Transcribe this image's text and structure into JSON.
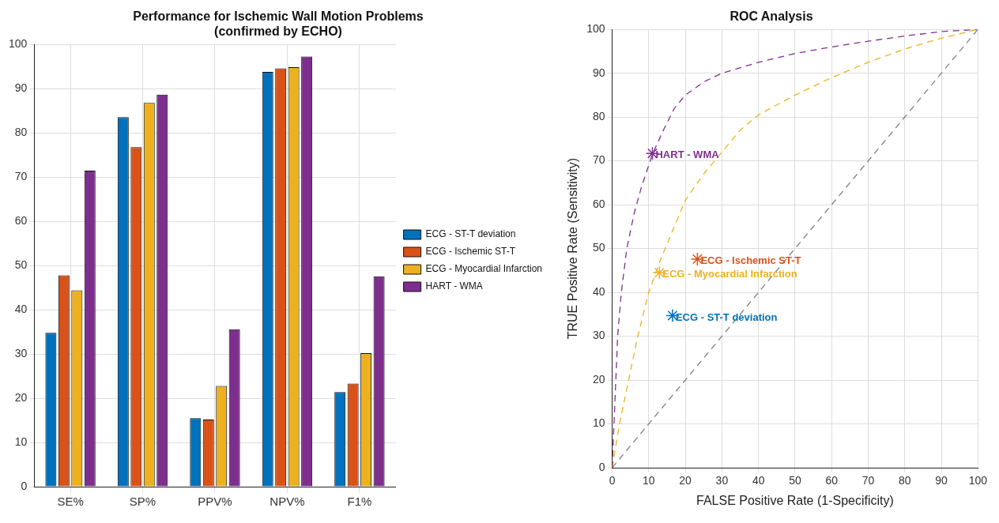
{
  "chart_data": [
    {
      "type": "bar",
      "title": "Performance for Ischemic Wall Motion Problems\n(confirmed by ECHO)",
      "categories": [
        "SE%",
        "SP%",
        "PPV%",
        "NPV%",
        "F1%"
      ],
      "ylim": [
        0,
        100
      ],
      "yticks": [
        0,
        10,
        20,
        30,
        40,
        50,
        60,
        70,
        80,
        90,
        100
      ],
      "grid": true,
      "legend": "right",
      "series": [
        {
          "name": "ECG - ST-T deviation",
          "color": "#0072bd",
          "values": [
            34.8,
            83.6,
            15.5,
            93.8,
            21.4
          ]
        },
        {
          "name": "ECG - Ischemic ST-T",
          "color": "#d95319",
          "values": [
            47.8,
            76.8,
            15.2,
            94.6,
            23.3
          ]
        },
        {
          "name": "ECG - Myocardial Infarction",
          "color": "#edb120",
          "values": [
            44.4,
            86.8,
            22.8,
            94.9,
            30.2
          ]
        },
        {
          "name": "HART - WMA",
          "color": "#7e2f8e",
          "values": [
            71.5,
            88.7,
            35.6,
            97.3,
            47.6
          ]
        }
      ]
    },
    {
      "type": "line",
      "title": "ROC Analysis",
      "xlabel": "FALSE Positive Rate (1-Specificity)",
      "ylabel": "TRUE Positive Rate (Sensitivity)",
      "xlim": [
        0,
        100
      ],
      "ylim": [
        0,
        100
      ],
      "xticks": [
        0,
        10,
        20,
        30,
        40,
        50,
        60,
        70,
        80,
        90,
        100
      ],
      "yticks": [
        0,
        10,
        20,
        30,
        40,
        50,
        60,
        70,
        80,
        90,
        100
      ],
      "grid": true,
      "legend": false,
      "series": [
        {
          "type": "line",
          "color": "#7e2f8e",
          "line_style": "dashed",
          "marker": "none",
          "x": [
            0,
            0.5,
            1,
            1.5,
            2.5,
            4,
            6,
            8,
            11,
            14,
            17,
            20,
            25,
            30,
            40,
            50,
            60,
            70,
            80,
            90,
            100
          ],
          "values": [
            0,
            10,
            20,
            30,
            40,
            50,
            58,
            64,
            71.5,
            77,
            82,
            85,
            88,
            90,
            92.5,
            94.5,
            96,
            97.3,
            98.5,
            99.5,
            100
          ]
        },
        {
          "type": "line",
          "color": "#edb120",
          "line_style": "dashed",
          "marker": "none",
          "x": [
            0,
            2,
            4.5,
            7,
            10,
            13,
            17,
            20,
            25,
            30,
            35,
            40,
            50,
            60,
            70,
            80,
            90,
            100
          ],
          "values": [
            0,
            10,
            20,
            30,
            40,
            47,
            55,
            61,
            67,
            72,
            77,
            80.5,
            85,
            89,
            92.5,
            95.5,
            98,
            100
          ]
        },
        {
          "type": "line",
          "color": "#808080",
          "line_style": "dashed",
          "marker": "none",
          "x": [
            0,
            100
          ],
          "values": [
            0,
            100
          ]
        },
        {
          "type": "scatter",
          "name": "HART - WMA",
          "color": "#7e2f8e",
          "marker": "cross",
          "x": [
            11
          ],
          "values": [
            71.7
          ]
        },
        {
          "type": "scatter",
          "name": "ECG - Ischemic ST-T",
          "color": "#d95319",
          "marker": "cross",
          "x": [
            23.3
          ],
          "values": [
            47.6
          ]
        },
        {
          "type": "scatter",
          "name": "ECG - Myocardial Infarction",
          "color": "#edb120",
          "marker": "cross",
          "x": [
            12.9
          ],
          "values": [
            44.5
          ]
        },
        {
          "type": "scatter",
          "name": "ECG - ST-T deviation",
          "color": "#0072bd",
          "marker": "cross",
          "x": [
            16.5
          ],
          "values": [
            34.7
          ]
        }
      ]
    }
  ]
}
